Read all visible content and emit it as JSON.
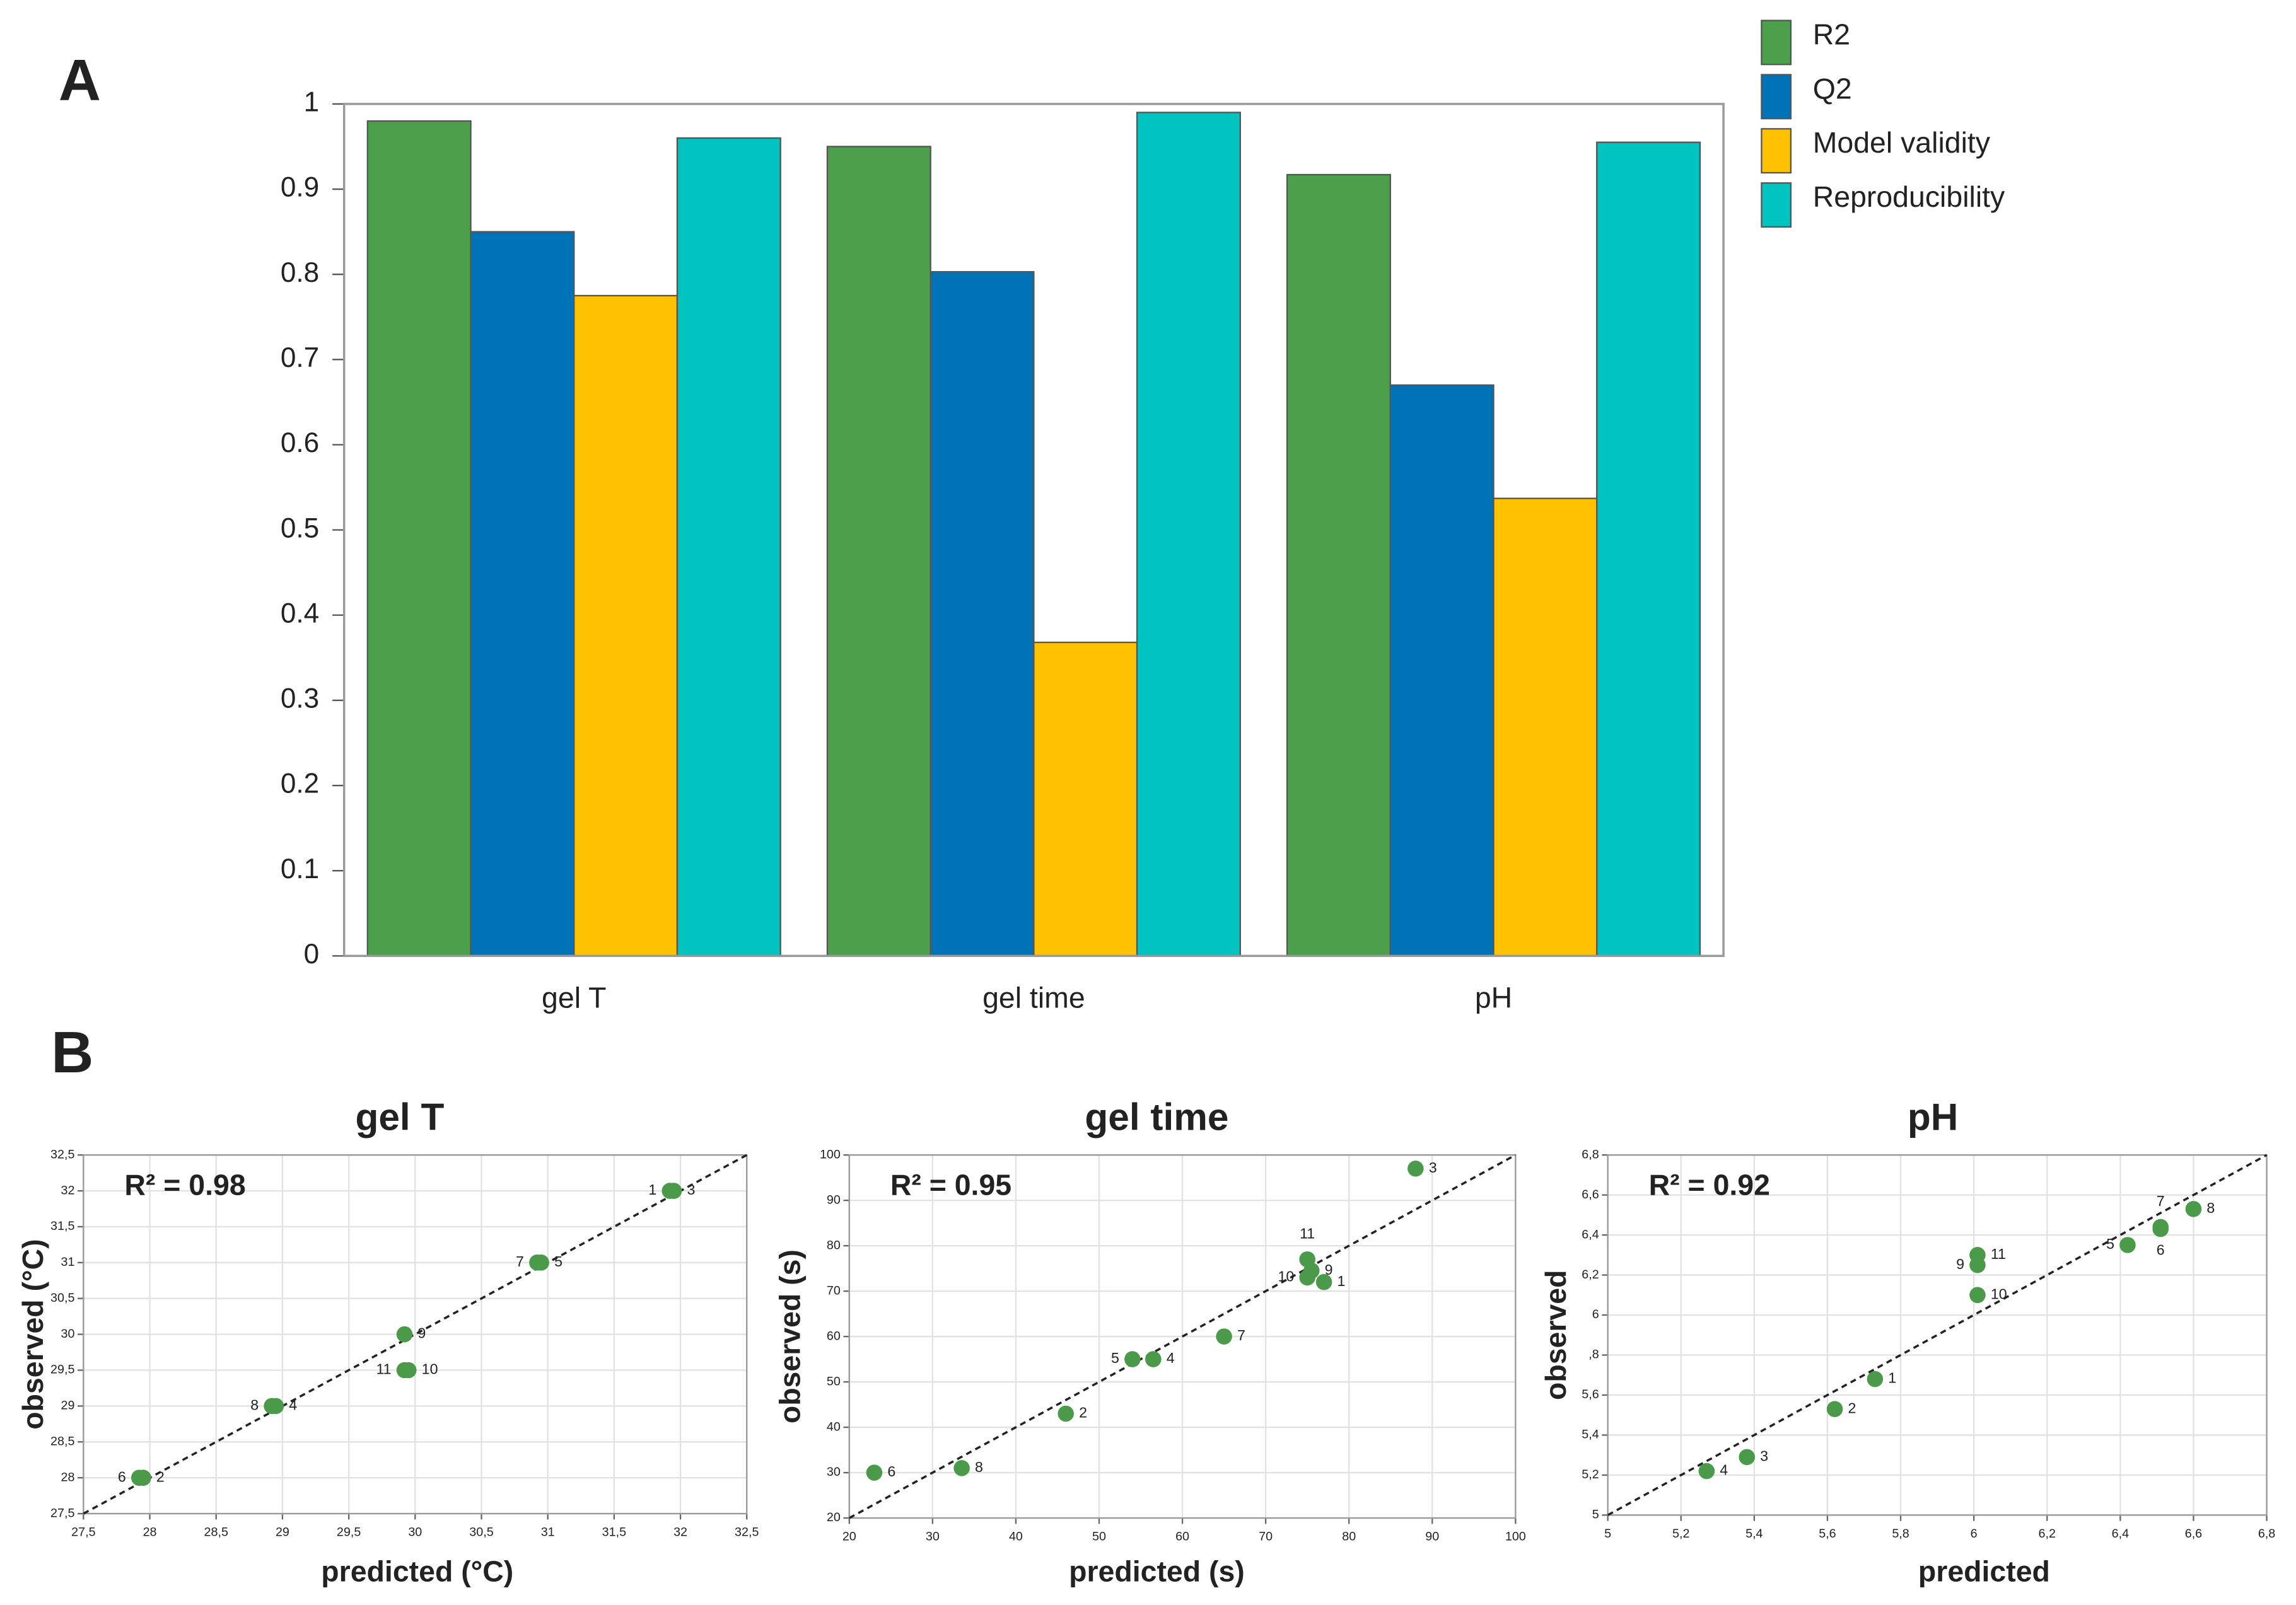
{
  "chart_data": [
    {
      "type": "bar",
      "panel": "A",
      "categories": [
        "gel T",
        "gel time",
        "pH"
      ],
      "series": [
        {
          "name": "R2",
          "color": "#4ca04c",
          "values": [
            0.98,
            0.95,
            0.917
          ]
        },
        {
          "name": "Q2",
          "color": "#0072b8",
          "values": [
            0.85,
            0.803,
            0.67
          ]
        },
        {
          "name": "Model validity",
          "color": "#ffc200",
          "values": [
            0.775,
            0.368,
            0.537
          ]
        },
        {
          "name": "Reproducibility",
          "color": "#00c4c0",
          "values": [
            0.96,
            0.99,
            0.955
          ]
        }
      ],
      "ylim": [
        0,
        1
      ],
      "yticks": [
        0,
        0.1,
        0.2,
        0.3,
        0.4,
        0.5,
        0.6,
        0.7,
        0.8,
        0.9,
        1
      ],
      "grid": false,
      "legend": "top-right"
    },
    {
      "type": "scatter",
      "panel": "B",
      "title": "gel T",
      "xlabel": "predicted (°C)",
      "ylabel": "observed (°C)",
      "annotation": "R² = 0.98",
      "color": "#4a9a4a",
      "grid": true,
      "point_labels": [
        "1",
        "3",
        "7",
        "5",
        "9",
        "11",
        "10",
        "8",
        "4",
        "6",
        "2"
      ],
      "x": [
        31.92,
        31.95,
        30.92,
        30.95,
        29.92,
        29.92,
        29.95,
        28.92,
        28.95,
        27.92,
        27.95
      ],
      "y": [
        32,
        32,
        31,
        31,
        30,
        29.5,
        29.5,
        29,
        29,
        28,
        28
      ],
      "xlim": [
        27.5,
        32.5
      ],
      "ylim": [
        27.5,
        32.5
      ],
      "xticks": [
        {
          "value": 27.5,
          "label": "27,5"
        },
        28,
        {
          "value": 28.5,
          "label": "28,5"
        },
        29,
        {
          "value": 29.5,
          "label": "29,5"
        },
        30,
        {
          "value": 30.5,
          "label": "30,5"
        },
        31,
        {
          "value": 31.5,
          "label": "31,5"
        },
        32,
        {
          "value": 32.5,
          "label": "32,5"
        }
      ],
      "yticks": [
        {
          "value": 27.5,
          "label": "27,5"
        },
        28,
        {
          "value": 28.5,
          "label": "28,5"
        },
        29,
        {
          "value": 29.5,
          "label": "29,5"
        },
        30,
        {
          "value": 30.5,
          "label": "30,5"
        },
        31,
        {
          "value": 31.5,
          "label": "31,5"
        },
        32,
        {
          "value": 32.5,
          "label": "32,5"
        }
      ]
    },
    {
      "type": "scatter",
      "title": "gel time",
      "xlabel": "predicted (s)",
      "ylabel": "observed (s)",
      "annotation": "R² = 0.95",
      "color": "#4a9a4a",
      "grid": true,
      "point_labels": [
        "3",
        "11",
        "9",
        "10",
        "1",
        "7",
        "5",
        "4",
        "2",
        "8",
        "6"
      ],
      "x": [
        88,
        75,
        75.5,
        75,
        77,
        65,
        54,
        56.5,
        46,
        33.5,
        23
      ],
      "y": [
        97,
        77,
        74.5,
        73,
        72,
        60,
        55,
        55,
        43,
        31,
        30
      ],
      "xlim": [
        20,
        100
      ],
      "ylim": [
        20,
        100
      ],
      "xticks": [
        20,
        30,
        40,
        50,
        60,
        70,
        80,
        90,
        100
      ],
      "yticks": [
        20,
        30,
        40,
        50,
        60,
        70,
        80,
        90,
        100
      ]
    },
    {
      "type": "scatter",
      "title": "pH",
      "xlabel": "predicted",
      "ylabel": "observed",
      "annotation": "R² = 0.92",
      "color": "#4a9a4a",
      "grid": true,
      "point_labels": [
        "8",
        "7",
        "6",
        "5",
        "11",
        "9",
        "10",
        "1",
        "2",
        "3",
        "4"
      ],
      "x": [
        6.6,
        6.51,
        6.51,
        6.42,
        6.01,
        6.01,
        6.01,
        5.73,
        5.62,
        5.38,
        5.27
      ],
      "y": [
        6.53,
        6.44,
        6.43,
        6.35,
        6.3,
        6.25,
        6.1,
        5.68,
        5.53,
        5.29,
        5.22
      ],
      "xlim": [
        5,
        6.8
      ],
      "ylim": [
        5,
        6.8
      ],
      "xticks": [
        5,
        {
          "value": 5.2,
          "label": "5,2"
        },
        {
          "value": 5.4,
          "label": "5,4"
        },
        {
          "value": 5.6,
          "label": "5,6"
        },
        {
          "value": 5.8,
          "label": "5,8"
        },
        6,
        {
          "value": 6.2,
          "label": "6,2"
        },
        {
          "value": 6.4,
          "label": "6,4"
        },
        {
          "value": 6.6,
          "label": "6,6"
        },
        {
          "value": 6.8,
          "label": "6,8"
        }
      ],
      "yticks": [
        5,
        {
          "value": 5.2,
          "label": "5,2"
        },
        {
          "value": 5.4,
          "label": "5,4"
        },
        {
          "value": 5.6,
          "label": "5,6"
        },
        {
          "value": 5.8,
          "label": ",8"
        },
        6,
        {
          "value": 6.2,
          "label": "6,2"
        },
        {
          "value": 6.4,
          "label": "6,4"
        },
        {
          "value": 6.6,
          "label": "6,6"
        },
        {
          "value": 6.8,
          "label": "6,8"
        }
      ]
    }
  ]
}
